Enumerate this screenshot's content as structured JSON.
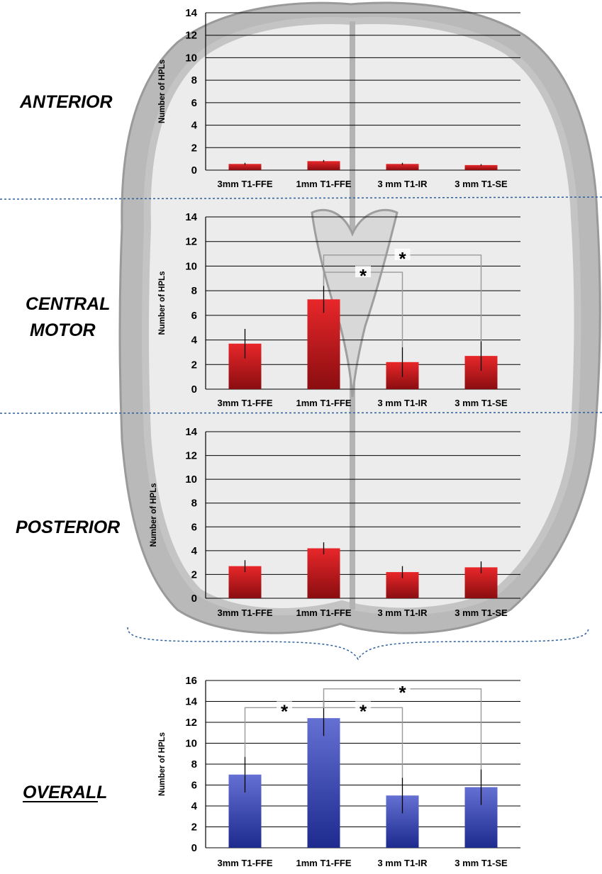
{
  "regions": {
    "anterior": "ANTERIOR",
    "central_line1": "CENTRAL",
    "central_line2": "MOTOR",
    "posterior": "POSTERIOR",
    "overall": "OVERALL"
  },
  "colors": {
    "red_bar": "#d0191c",
    "red_bar_dark": "#8a0d10",
    "blue_bar": "#4d5bc3",
    "blue_bar_dark": "#1d2a8e",
    "brain_gray": "#b9b9b9",
    "brain_light": "#ececec",
    "divider": "#2b5f9e"
  },
  "chart_data": [
    {
      "id": "anterior",
      "type": "bar",
      "categories": [
        "3mm T1-FFE",
        "1mm T1-FFE",
        "3 mm T1-IR",
        "3 mm T1-SE"
      ],
      "values": [
        0.55,
        0.8,
        0.55,
        0.45
      ],
      "error": [
        0.1,
        0.1,
        0.1,
        0.08
      ],
      "ylabel": "Number of HPLs",
      "ylim": [
        0,
        14
      ],
      "yticks": [
        0,
        2,
        4,
        6,
        8,
        10,
        12,
        14
      ],
      "grid": true,
      "significance": []
    },
    {
      "id": "central_motor",
      "type": "bar",
      "categories": [
        "3mm T1-FFE",
        "1mm T1-FFE",
        "3 mm T1-IR",
        "3 mm T1-SE"
      ],
      "values": [
        3.7,
        7.3,
        2.2,
        2.7
      ],
      "error": [
        1.2,
        1.1,
        1.2,
        1.2
      ],
      "ylabel": "Number of HPLs",
      "ylim": [
        0,
        14
      ],
      "yticks": [
        0,
        2,
        4,
        6,
        8,
        10,
        12,
        14
      ],
      "grid": true,
      "significance": [
        {
          "from": 1,
          "to": 2,
          "level": 9.5,
          "label": "*"
        },
        {
          "from": 1,
          "to": 3,
          "level": 10.9,
          "label": "*"
        }
      ]
    },
    {
      "id": "posterior",
      "type": "bar",
      "categories": [
        "3mm T1-FFE",
        "1mm T1-FFE",
        "3 mm T1-IR",
        "3 mm T1-SE"
      ],
      "values": [
        2.7,
        4.2,
        2.2,
        2.6
      ],
      "error": [
        0.5,
        0.5,
        0.5,
        0.5
      ],
      "ylabel": "Number of HPLs",
      "ylim": [
        0,
        14
      ],
      "yticks": [
        0,
        2,
        4,
        6,
        8,
        10,
        12,
        14
      ],
      "grid": true,
      "significance": []
    },
    {
      "id": "overall",
      "type": "bar",
      "categories": [
        "3mm T1-FFE",
        "1mm T1-FFE",
        "3 mm T1-IR",
        "3 mm T1-SE"
      ],
      "values": [
        7.0,
        12.4,
        5.0,
        5.8
      ],
      "error": [
        1.7,
        1.7,
        1.7,
        1.7
      ],
      "ylabel": "Number of HPLs",
      "ylim": [
        0,
        16
      ],
      "yticks": [
        0,
        2,
        4,
        6,
        8,
        10,
        12,
        14,
        16
      ],
      "grid": true,
      "significance": [
        {
          "from": 0,
          "to": 1,
          "level": 13.4,
          "label": "*"
        },
        {
          "from": 1,
          "to": 2,
          "level": 13.4,
          "label": "*"
        },
        {
          "from": 1,
          "to": 3,
          "level": 15.2,
          "label": "*"
        }
      ]
    }
  ]
}
